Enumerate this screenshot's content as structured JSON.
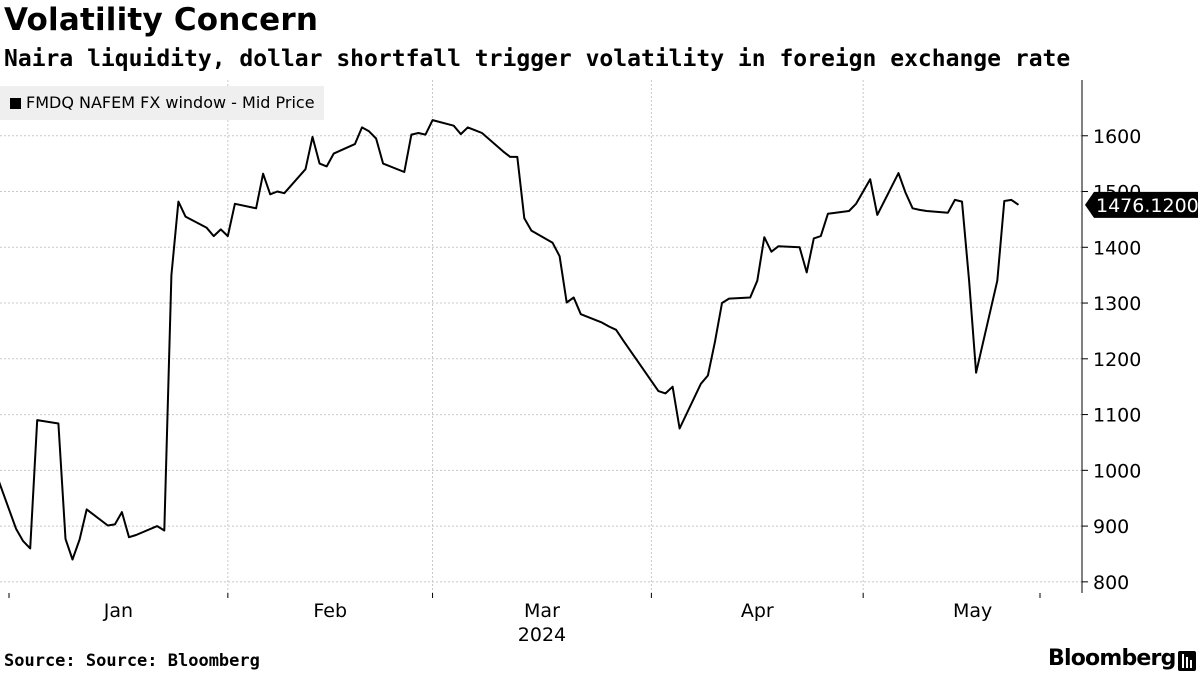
{
  "header": {
    "title": "Volatility Concern",
    "subtitle": "Naira liquidity, dollar shortfall trigger volatility in foreign exchange rate"
  },
  "legend": {
    "label": "FMDQ NAFEM FX window - Mid Price",
    "swatch_color": "#000000"
  },
  "footer": {
    "source": "Source: Source: Bloomberg",
    "brand": "Bloomberg",
    "brand_icon": "bloomberg-terminal-icon"
  },
  "last_value_badge": {
    "text": "1476.1200",
    "color": "#000000"
  },
  "chart_data": {
    "type": "line",
    "title": "Volatility Concern",
    "subtitle": "Naira liquidity, dollar shortfall trigger volatility in foreign exchange rate",
    "xlabel": "",
    "ylabel": "",
    "x_tick_labels": [
      "Jan",
      "Feb",
      "Mar",
      "Apr",
      "May"
    ],
    "x_year_label": "2024",
    "y_ticks": [
      800,
      900,
      1000,
      1100,
      1200,
      1300,
      1400,
      1500,
      1600
    ],
    "ylim": [
      780,
      1700
    ],
    "xlim": [
      "2023-12-27",
      "2024-05-31"
    ],
    "grid": true,
    "legend_position": "top-left",
    "series": [
      {
        "name": "FMDQ NAFEM FX window - Mid Price",
        "color": "#000000",
        "points": [
          [
            "2023-12-27",
            905
          ],
          [
            "2023-12-28",
            988
          ],
          [
            "2023-12-29",
            1035
          ],
          [
            "2024-01-02",
            895
          ],
          [
            "2024-01-03",
            873
          ],
          [
            "2024-01-04",
            860
          ],
          [
            "2024-01-05",
            1090
          ],
          [
            "2024-01-08",
            1084
          ],
          [
            "2024-01-09",
            877
          ],
          [
            "2024-01-10",
            840
          ],
          [
            "2024-01-11",
            876
          ],
          [
            "2024-01-12",
            930
          ],
          [
            "2024-01-15",
            901
          ],
          [
            "2024-01-16",
            903
          ],
          [
            "2024-01-17",
            925
          ],
          [
            "2024-01-18",
            880
          ],
          [
            "2024-01-19",
            884
          ],
          [
            "2024-01-22",
            900
          ],
          [
            "2024-01-23",
            892
          ],
          [
            "2024-01-24",
            1350
          ],
          [
            "2024-01-25",
            1482
          ],
          [
            "2024-01-26",
            1455
          ],
          [
            "2024-01-29",
            1435
          ],
          [
            "2024-01-30",
            1420
          ],
          [
            "2024-01-31",
            1432
          ],
          [
            "2024-02-01",
            1420
          ],
          [
            "2024-02-02",
            1478
          ],
          [
            "2024-02-05",
            1470
          ],
          [
            "2024-02-06",
            1532
          ],
          [
            "2024-02-07",
            1495
          ],
          [
            "2024-02-08",
            1500
          ],
          [
            "2024-02-09",
            1497
          ],
          [
            "2024-02-12",
            1540
          ],
          [
            "2024-02-13",
            1598
          ],
          [
            "2024-02-14",
            1550
          ],
          [
            "2024-02-15",
            1545
          ],
          [
            "2024-02-16",
            1568
          ],
          [
            "2024-02-19",
            1585
          ],
          [
            "2024-02-20",
            1615
          ],
          [
            "2024-02-21",
            1608
          ],
          [
            "2024-02-22",
            1595
          ],
          [
            "2024-02-23",
            1550
          ],
          [
            "2024-02-26",
            1535
          ],
          [
            "2024-02-27",
            1602
          ],
          [
            "2024-02-28",
            1605
          ],
          [
            "2024-02-29",
            1602
          ],
          [
            "2024-03-01",
            1628
          ],
          [
            "2024-03-04",
            1618
          ],
          [
            "2024-03-05",
            1603
          ],
          [
            "2024-03-06",
            1615
          ],
          [
            "2024-03-07",
            1610
          ],
          [
            "2024-03-08",
            1605
          ],
          [
            "2024-03-11",
            1572
          ],
          [
            "2024-03-12",
            1562
          ],
          [
            "2024-03-13",
            1562
          ],
          [
            "2024-03-14",
            1452
          ],
          [
            "2024-03-15",
            1430
          ],
          [
            "2024-03-18",
            1408
          ],
          [
            "2024-03-19",
            1384
          ],
          [
            "2024-03-20",
            1301
          ],
          [
            "2024-03-21",
            1310
          ],
          [
            "2024-03-22",
            1280
          ],
          [
            "2024-03-25",
            1265
          ],
          [
            "2024-03-26",
            1258
          ],
          [
            "2024-03-27",
            1252
          ],
          [
            "2024-03-28",
            1233
          ],
          [
            "2024-04-02",
            1142
          ],
          [
            "2024-04-03",
            1138
          ],
          [
            "2024-04-04",
            1150
          ],
          [
            "2024-04-05",
            1075
          ],
          [
            "2024-04-08",
            1155
          ],
          [
            "2024-04-09",
            1170
          ],
          [
            "2024-04-10",
            1230
          ],
          [
            "2024-04-11",
            1300
          ],
          [
            "2024-04-12",
            1308
          ],
          [
            "2024-04-15",
            1310
          ],
          [
            "2024-04-16",
            1340
          ],
          [
            "2024-04-17",
            1418
          ],
          [
            "2024-04-18",
            1392
          ],
          [
            "2024-04-19",
            1402
          ],
          [
            "2024-04-22",
            1400
          ],
          [
            "2024-04-23",
            1355
          ],
          [
            "2024-04-24",
            1416
          ],
          [
            "2024-04-25",
            1420
          ],
          [
            "2024-04-26",
            1460
          ],
          [
            "2024-04-29",
            1465
          ],
          [
            "2024-04-30",
            1478
          ],
          [
            "2024-05-02",
            1522
          ],
          [
            "2024-05-03",
            1458
          ],
          [
            "2024-05-06",
            1533
          ],
          [
            "2024-05-07",
            1498
          ],
          [
            "2024-05-08",
            1470
          ],
          [
            "2024-05-09",
            1467
          ],
          [
            "2024-05-10",
            1465
          ],
          [
            "2024-05-13",
            1462
          ],
          [
            "2024-05-14",
            1485
          ],
          [
            "2024-05-15",
            1482
          ],
          [
            "2024-05-16",
            1340
          ],
          [
            "2024-05-17",
            1175
          ],
          [
            "2024-05-20",
            1340
          ],
          [
            "2024-05-21",
            1483
          ],
          [
            "2024-05-22",
            1485
          ],
          [
            "2024-05-23",
            1476.12
          ]
        ]
      }
    ]
  }
}
